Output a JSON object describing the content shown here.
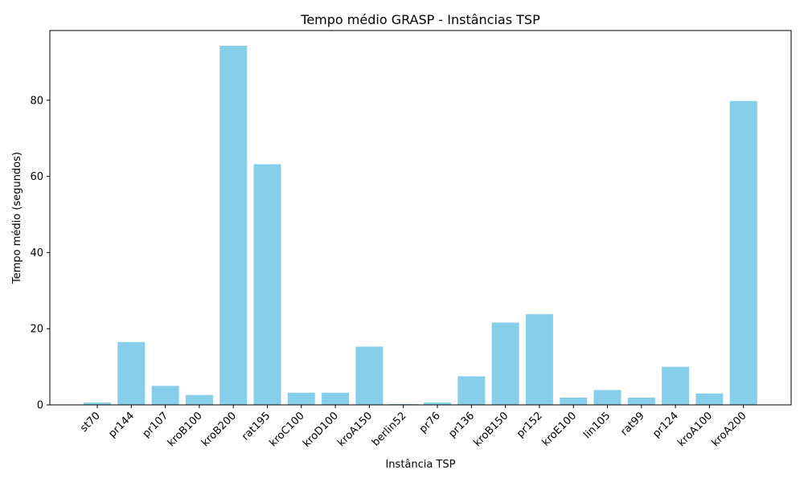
{
  "chart_data": {
    "type": "bar",
    "title": "Tempo médio GRASP - Instâncias TSP",
    "xlabel": "Instância TSP",
    "ylabel": "Tempo médio (segundos)",
    "categories": [
      "st70",
      "pr144",
      "pr107",
      "kroB100",
      "kroB200",
      "rat195",
      "kroC100",
      "kroD100",
      "kroA150",
      "berlin52",
      "pr76",
      "pr136",
      "kroB150",
      "pr152",
      "kroE100",
      "lin105",
      "rat99",
      "pr124",
      "kroA100",
      "kroA200"
    ],
    "values": [
      0.6,
      16.5,
      5.0,
      2.6,
      94.3,
      63.2,
      3.2,
      3.2,
      15.3,
      0.2,
      0.6,
      7.5,
      21.6,
      23.8,
      1.9,
      3.9,
      1.9,
      10.0,
      3.0,
      79.8
    ],
    "yticks": [
      0,
      20,
      40,
      60,
      80
    ],
    "ylim": [
      0,
      98.3
    ],
    "bar_color": "#87ceeb",
    "grid": false
  }
}
